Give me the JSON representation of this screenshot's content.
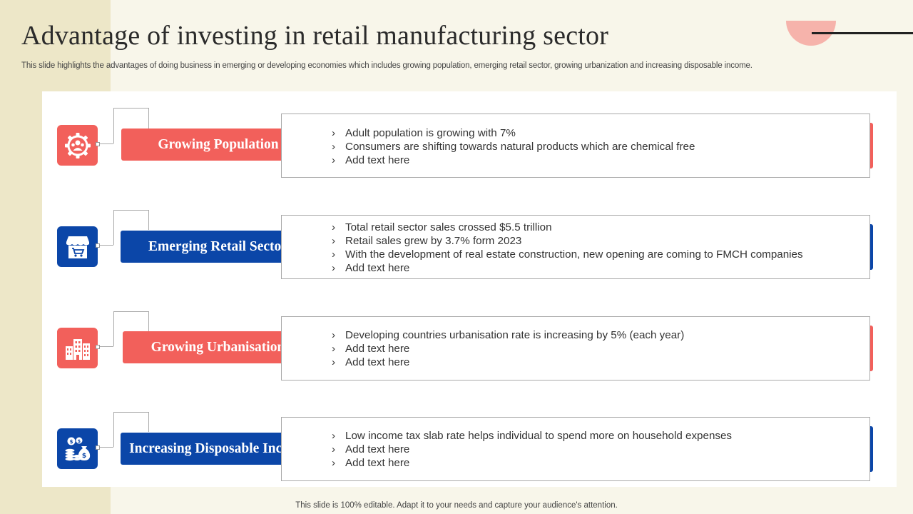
{
  "slide": {
    "title": "Advantage of investing in retail manufacturing sector",
    "subtitle": "This slide highlights the advantages of doing business in emerging or developing economies which includes growing population, emerging retail sector, growing urbanization and increasing disposable income.",
    "footer": "This slide is 100% editable. Adapt it to your needs and capture your audience's attention."
  },
  "colors": {
    "red": "#f2605b",
    "blue": "#0b46a8"
  },
  "items": [
    {
      "label": "Growing Population",
      "icon": "people-gear-icon",
      "color": "red",
      "bullets": [
        "Adult population is growing with 7%",
        "Consumers are shifting towards natural products which are chemical free",
        "Add text here"
      ]
    },
    {
      "label": "Emerging Retail Sector",
      "icon": "shop-cart-icon",
      "color": "blue",
      "bullets": [
        "Total retail sector sales crossed $5.5 trillion",
        "Retail sales grew by 3.7% form 2023",
        "With the development of real estate construction, new opening are coming to FMCH  companies",
        "Add text here"
      ]
    },
    {
      "label": "Growing Urbanisation",
      "icon": "buildings-icon",
      "color": "red",
      "bullets": [
        "Developing countries urbanisation rate is increasing by 5% (each year)",
        "Add text here",
        "Add text here"
      ]
    },
    {
      "label": "Increasing Disposable Income",
      "icon": "money-bags-icon",
      "color": "blue",
      "bullets": [
        "Low income tax slab rate helps individual to spend more on household expenses",
        "Add text here",
        "Add text here"
      ]
    }
  ]
}
